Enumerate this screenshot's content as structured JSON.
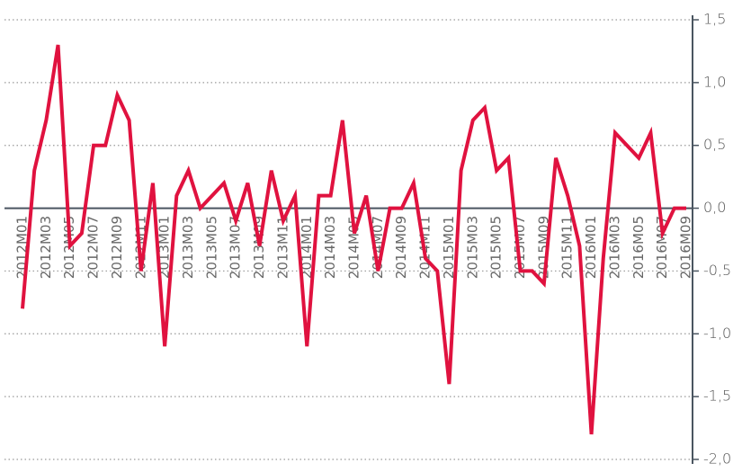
{
  "chart_data": {
    "type": "line",
    "categories": [
      "2012M01",
      null,
      "2012M03",
      null,
      "2012M05",
      null,
      "2012M07",
      null,
      "2012M09",
      null,
      "2012M11",
      null,
      "2013M01",
      null,
      "2013M03",
      null,
      "2013M05",
      null,
      "2013M07",
      null,
      "2013M09",
      null,
      "2013M11",
      null,
      "2014M01",
      null,
      "2014M03",
      null,
      "2014M05",
      null,
      "2014M07",
      null,
      "2014M09",
      null,
      "2014M11",
      null,
      "2015M01",
      null,
      "2015M03",
      null,
      "2015M05",
      null,
      "2015M07",
      null,
      "2015M09",
      null,
      "2015M11",
      null,
      "2016M01",
      null,
      "2016M03",
      null,
      "2016M05",
      null,
      "2016M07",
      null,
      "2016M09"
    ],
    "series": [
      {
        "color": "#e0123f",
        "values": [
          -0.8,
          0.3,
          0.7,
          1.3,
          -0.3,
          -0.2,
          0.5,
          0.5,
          0.9,
          0.7,
          -0.5,
          0.2,
          -1.1,
          0.1,
          0.3,
          0.0,
          0.1,
          0.2,
          -0.1,
          0.2,
          -0.3,
          0.3,
          -0.1,
          0.1,
          -1.1,
          0.1,
          0.1,
          0.7,
          -0.2,
          0.1,
          -0.5,
          0.0,
          0.0,
          0.2,
          -0.4,
          -0.5,
          -1.4,
          0.3,
          0.7,
          0.8,
          0.3,
          0.4,
          -0.5,
          -0.5,
          -0.6,
          0.4,
          0.1,
          -0.3,
          -1.8,
          -0.4,
          0.6,
          0.5,
          0.4,
          0.6,
          -0.2,
          0.0,
          0.0
        ]
      }
    ],
    "ylim": [
      -2.0,
      1.5
    ],
    "yticks": [
      {
        "value": 1.5,
        "label": "1,5"
      },
      {
        "value": 1.0,
        "label": "1,0"
      },
      {
        "value": 0.5,
        "label": "0,5"
      },
      {
        "value": 0.0,
        "label": "0,0"
      },
      {
        "value": -0.5,
        "label": "-0,5"
      },
      {
        "value": -1.0,
        "label": "-1,0"
      },
      {
        "value": -1.5,
        "label": "-1,5"
      },
      {
        "value": -2.0,
        "label": "-2,0"
      }
    ],
    "grid": true
  }
}
